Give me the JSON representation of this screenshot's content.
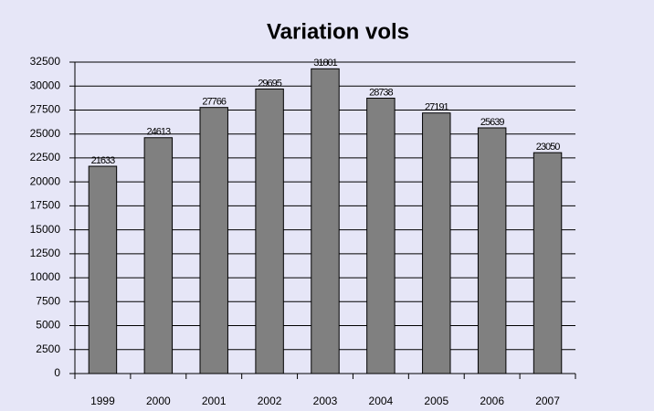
{
  "chart_data": {
    "type": "bar",
    "title": "Variation vols",
    "categories": [
      "1999",
      "2000",
      "2001",
      "2002",
      "2003",
      "2004",
      "2005",
      "2006",
      "2007"
    ],
    "values": [
      21633,
      24613,
      27766,
      29695,
      31801,
      28738,
      27191,
      25639,
      23050
    ],
    "color": "#808080",
    "ylim": [
      0,
      32500
    ],
    "yticks": [
      0,
      2500,
      5000,
      7500,
      10000,
      12500,
      15000,
      17500,
      20000,
      22500,
      25000,
      27500,
      30000,
      32500
    ],
    "grid": true
  }
}
